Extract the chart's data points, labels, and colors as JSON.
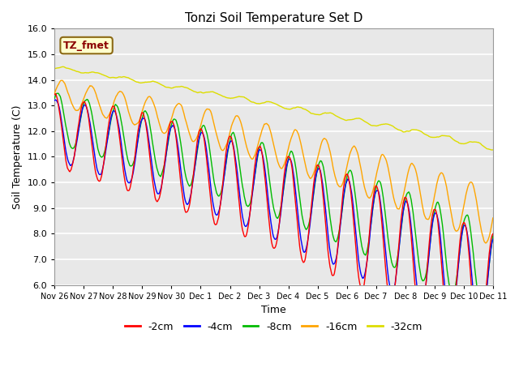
{
  "title": "Tonzi Soil Temperature Set D",
  "xlabel": "Time",
  "ylabel": "Soil Temperature (C)",
  "ylim": [
    6.0,
    16.0
  ],
  "yticks": [
    6.0,
    7.0,
    8.0,
    9.0,
    10.0,
    11.0,
    12.0,
    13.0,
    14.0,
    15.0,
    16.0
  ],
  "fig_bg_color": "#ffffff",
  "plot_bg_color": "#e8e8e8",
  "grid_color": "#ffffff",
  "legend_label": "TZ_fmet",
  "legend_box_color": "#ffffcc",
  "legend_box_edge": "#8b4513",
  "series_colors": {
    "-2cm": "#ff0000",
    "-4cm": "#0000ff",
    "-8cm": "#00bb00",
    "-16cm": "#ffa500",
    "-32cm": "#dddd00"
  },
  "xtick_labels": [
    "Nov 26",
    "Nov 27",
    "Nov 28",
    "Nov 29",
    "Nov 30",
    "Dec 1",
    "Dec 2",
    "Dec 3",
    "Dec 4",
    "Dec 5",
    "Dec 6",
    "Dec 7",
    "Dec 8",
    "Dec 9",
    "Dec 10",
    "Dec 11"
  ],
  "n_points": 720,
  "total_days": 15
}
